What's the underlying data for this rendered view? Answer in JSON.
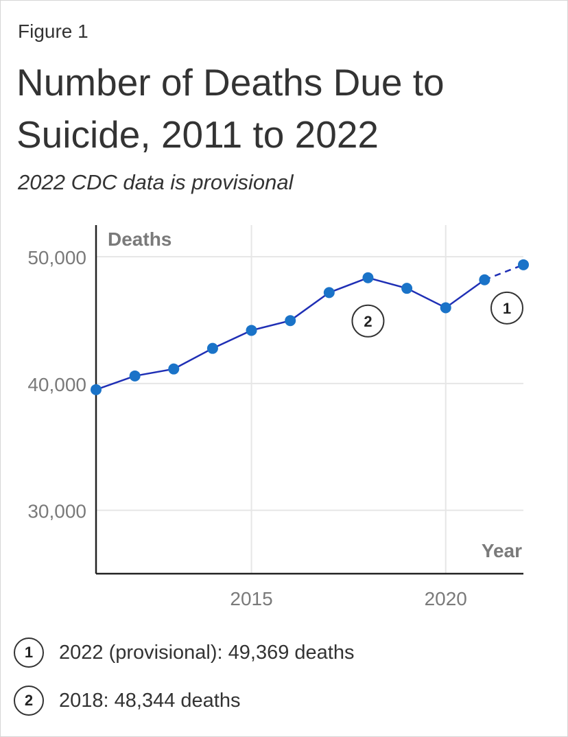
{
  "figure_label": "Figure 1",
  "title": "Number of Deaths Due to Suicide, 2011 to 2022",
  "subtitle": "2022 CDC data is provisional",
  "chart_data": {
    "type": "line",
    "title": "Number of Deaths Due to Suicide, 2011 to 2022",
    "subtitle": "2022 CDC data is provisional",
    "xlabel": "Year",
    "ylabel": "Deaths",
    "x": [
      2011,
      2012,
      2013,
      2014,
      2015,
      2016,
      2017,
      2018,
      2019,
      2020,
      2021,
      2022
    ],
    "series": [
      {
        "values": [
          39518,
          40600,
          41149,
          42773,
          44193,
          44965,
          47173,
          48344,
          47511,
          45979,
          48183,
          49369
        ],
        "provisional_from": 2022
      }
    ],
    "xlim": [
      2011,
      2022
    ],
    "ylim": [
      25000,
      52500
    ],
    "x_ticks": [
      "2015",
      "2020"
    ],
    "x_tick_values": [
      2015,
      2020
    ],
    "y_ticks": [
      "30,000",
      "40,000",
      "50,000"
    ],
    "y_tick_values": [
      30000,
      40000,
      50000
    ],
    "grid": true,
    "line_color": "#1f2fb5",
    "marker_color": "#1a73c8",
    "annotations": [
      {
        "number": "1",
        "year": 2022,
        "text": "2022 (provisional): 49,369 deaths"
      },
      {
        "number": "2",
        "year": 2018,
        "text": "2018: 48,344 deaths"
      }
    ]
  }
}
